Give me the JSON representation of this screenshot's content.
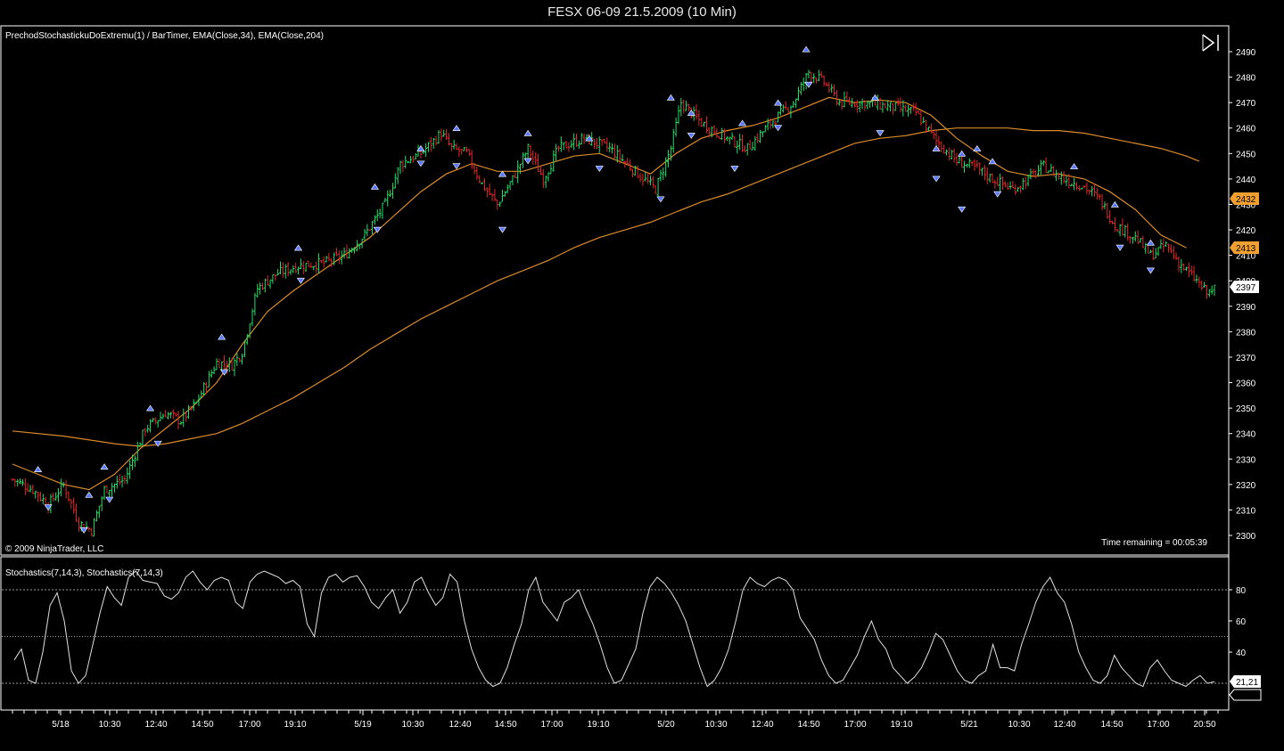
{
  "window": {
    "title": "FESX 06-09  21.5.2009 (10 Min)"
  },
  "price_panel": {
    "indicator_label": "PrechodStochastickuDoExtremu(1) / BarTimer, EMA(Close,34), EMA(Close,204)",
    "copyright": "© 2009 NinjaTrader, LLC",
    "time_remaining": "Time remaining = 00:05:39",
    "badges": {
      "ema34": "2413",
      "ema204": "2432",
      "last": "2397"
    },
    "colors": {
      "up": "#22dd66",
      "down": "#e02828",
      "ema34": "#d98a2a",
      "ema204": "#d98a2a",
      "marker": "#5a78ff",
      "badge": "#f0a030"
    }
  },
  "stoch_panel": {
    "label": "Stochastics(7,14,3), Stochastics(7,14,3)",
    "last_value": "21,21",
    "color": "#e0e0e0"
  },
  "x_axis": {
    "ticks": [
      "5/18",
      "10:30",
      "12:40",
      "14:50",
      "17:00",
      "19:10",
      "5/19",
      "10:30",
      "12:40",
      "14:50",
      "17:00",
      "19:10",
      "5/20",
      "10:30",
      "12:40",
      "14:50",
      "17:00",
      "19:10",
      "5/21",
      "10:30",
      "12:40",
      "14:50",
      "17:00",
      "20:50"
    ]
  },
  "chart_data": [
    {
      "type": "candlestick",
      "title": "FESX 06-09  21.5.2009 (10 Min)",
      "ylim": [
        2295,
        2495
      ],
      "yticks": [
        2300,
        2310,
        2320,
        2330,
        2340,
        2350,
        2360,
        2370,
        2380,
        2390,
        2400,
        2410,
        2420,
        2430,
        2440,
        2450,
        2460,
        2470,
        2480,
        2490
      ],
      "close_path": [
        [
          0,
          2322
        ],
        [
          8,
          2318
        ],
        [
          14,
          2312
        ],
        [
          20,
          2320
        ],
        [
          26,
          2305
        ],
        [
          31,
          2302
        ],
        [
          36,
          2318
        ],
        [
          44,
          2322
        ],
        [
          52,
          2342
        ],
        [
          60,
          2348
        ],
        [
          66,
          2345
        ],
        [
          72,
          2352
        ],
        [
          80,
          2368
        ],
        [
          86,
          2367
        ],
        [
          90,
          2372
        ],
        [
          96,
          2397
        ],
        [
          104,
          2403
        ],
        [
          112,
          2406
        ],
        [
          122,
          2407
        ],
        [
          130,
          2410
        ],
        [
          138,
          2418
        ],
        [
          146,
          2430
        ],
        [
          152,
          2446
        ],
        [
          160,
          2450
        ],
        [
          168,
          2458
        ],
        [
          172,
          2452
        ],
        [
          178,
          2450
        ],
        [
          184,
          2438
        ],
        [
          190,
          2430
        ],
        [
          196,
          2440
        ],
        [
          202,
          2452
        ],
        [
          208,
          2440
        ],
        [
          214,
          2452
        ],
        [
          224,
          2456
        ],
        [
          234,
          2452
        ],
        [
          244,
          2443
        ],
        [
          252,
          2436
        ],
        [
          258,
          2452
        ],
        [
          262,
          2470
        ],
        [
          270,
          2462
        ],
        [
          280,
          2456
        ],
        [
          288,
          2452
        ],
        [
          298,
          2463
        ],
        [
          306,
          2470
        ],
        [
          312,
          2482
        ],
        [
          318,
          2478
        ],
        [
          324,
          2470
        ],
        [
          334,
          2470
        ],
        [
          346,
          2468
        ],
        [
          354,
          2466
        ],
        [
          362,
          2455
        ],
        [
          370,
          2447
        ],
        [
          378,
          2444
        ],
        [
          384,
          2440
        ],
        [
          392,
          2436
        ],
        [
          398,
          2440
        ],
        [
          404,
          2445
        ],
        [
          412,
          2440
        ],
        [
          420,
          2437
        ],
        [
          426,
          2432
        ],
        [
          432,
          2422
        ],
        [
          440,
          2417
        ],
        [
          446,
          2410
        ],
        [
          452,
          2414
        ],
        [
          458,
          2406
        ],
        [
          464,
          2400
        ],
        [
          468,
          2395
        ],
        [
          471,
          2397
        ]
      ],
      "ema34": [
        [
          0,
          2328
        ],
        [
          20,
          2320
        ],
        [
          30,
          2318
        ],
        [
          40,
          2324
        ],
        [
          50,
          2334
        ],
        [
          60,
          2342
        ],
        [
          70,
          2350
        ],
        [
          80,
          2360
        ],
        [
          90,
          2375
        ],
        [
          100,
          2388
        ],
        [
          110,
          2396
        ],
        [
          120,
          2403
        ],
        [
          130,
          2410
        ],
        [
          140,
          2417
        ],
        [
          150,
          2426
        ],
        [
          160,
          2435
        ],
        [
          170,
          2442
        ],
        [
          180,
          2446
        ],
        [
          190,
          2443
        ],
        [
          200,
          2443
        ],
        [
          210,
          2446
        ],
        [
          220,
          2449
        ],
        [
          230,
          2450
        ],
        [
          240,
          2446
        ],
        [
          250,
          2442
        ],
        [
          260,
          2450
        ],
        [
          270,
          2456
        ],
        [
          280,
          2459
        ],
        [
          290,
          2461
        ],
        [
          300,
          2464
        ],
        [
          310,
          2468
        ],
        [
          320,
          2472
        ],
        [
          330,
          2470
        ],
        [
          340,
          2471
        ],
        [
          350,
          2470
        ],
        [
          360,
          2465
        ],
        [
          370,
          2456
        ],
        [
          380,
          2449
        ],
        [
          390,
          2443
        ],
        [
          400,
          2441
        ],
        [
          410,
          2442
        ],
        [
          420,
          2440
        ],
        [
          430,
          2435
        ],
        [
          440,
          2428
        ],
        [
          450,
          2418
        ],
        [
          460,
          2413
        ]
      ],
      "ema204": [
        [
          0,
          2341
        ],
        [
          20,
          2339
        ],
        [
          40,
          2336
        ],
        [
          50,
          2335
        ],
        [
          60,
          2336
        ],
        [
          70,
          2338
        ],
        [
          80,
          2340
        ],
        [
          90,
          2344
        ],
        [
          100,
          2349
        ],
        [
          110,
          2354
        ],
        [
          120,
          2360
        ],
        [
          130,
          2366
        ],
        [
          140,
          2373
        ],
        [
          150,
          2379
        ],
        [
          160,
          2385
        ],
        [
          170,
          2390
        ],
        [
          180,
          2395
        ],
        [
          190,
          2400
        ],
        [
          200,
          2404
        ],
        [
          210,
          2408
        ],
        [
          220,
          2413
        ],
        [
          230,
          2417
        ],
        [
          240,
          2420
        ],
        [
          250,
          2423
        ],
        [
          260,
          2427
        ],
        [
          270,
          2431
        ],
        [
          280,
          2434
        ],
        [
          290,
          2438
        ],
        [
          300,
          2442
        ],
        [
          310,
          2446
        ],
        [
          320,
          2450
        ],
        [
          330,
          2454
        ],
        [
          340,
          2456
        ],
        [
          350,
          2457
        ],
        [
          360,
          2459
        ],
        [
          370,
          2460
        ],
        [
          380,
          2460
        ],
        [
          390,
          2460
        ],
        [
          400,
          2459
        ],
        [
          410,
          2459
        ],
        [
          420,
          2458
        ],
        [
          430,
          2456
        ],
        [
          440,
          2454
        ],
        [
          450,
          2452
        ],
        [
          460,
          2449
        ],
        [
          465,
          2447
        ]
      ],
      "markers_up": [
        [
          10,
          2326
        ],
        [
          30,
          2316
        ],
        [
          36,
          2327
        ],
        [
          54,
          2350
        ],
        [
          82,
          2378
        ],
        [
          112,
          2413
        ],
        [
          142,
          2437
        ],
        [
          160,
          2452
        ],
        [
          174,
          2460
        ],
        [
          192,
          2442
        ],
        [
          202,
          2458
        ],
        [
          226,
          2456
        ],
        [
          258,
          2472
        ],
        [
          266,
          2466
        ],
        [
          286,
          2462
        ],
        [
          300,
          2470
        ],
        [
          311,
          2491
        ],
        [
          338,
          2472
        ],
        [
          362,
          2452
        ],
        [
          372,
          2450
        ],
        [
          378,
          2452
        ],
        [
          384,
          2447
        ],
        [
          416,
          2445
        ],
        [
          432,
          2430
        ],
        [
          446,
          2415
        ]
      ],
      "markers_down": [
        [
          14,
          2311
        ],
        [
          28,
          2302
        ],
        [
          38,
          2314
        ],
        [
          57,
          2336
        ],
        [
          83,
          2364
        ],
        [
          113,
          2400
        ],
        [
          143,
          2420
        ],
        [
          160,
          2446
        ],
        [
          174,
          2445
        ],
        [
          192,
          2420
        ],
        [
          202,
          2447
        ],
        [
          230,
          2444
        ],
        [
          254,
          2432
        ],
        [
          266,
          2457
        ],
        [
          283,
          2444
        ],
        [
          300,
          2460
        ],
        [
          312,
          2477
        ],
        [
          340,
          2458
        ],
        [
          362,
          2440
        ],
        [
          372,
          2428
        ],
        [
          386,
          2434
        ],
        [
          434,
          2413
        ],
        [
          446,
          2404
        ]
      ]
    },
    {
      "type": "line",
      "title": "Stochastics(7,14,3), Stochastics(7,14,3)",
      "ylim": [
        5,
        95
      ],
      "yticks": [
        40,
        60,
        80
      ],
      "reference_lines": [
        20,
        50,
        80
      ],
      "values": [
        35,
        42,
        22,
        20,
        40,
        70,
        78,
        60,
        28,
        20,
        25,
        45,
        65,
        82,
        75,
        70,
        88,
        92,
        86,
        85,
        84,
        76,
        74,
        78,
        88,
        92,
        85,
        80,
        86,
        88,
        86,
        72,
        68,
        85,
        90,
        92,
        90,
        88,
        84,
        86,
        82,
        58,
        50,
        78,
        88,
        90,
        85,
        88,
        89,
        82,
        72,
        68,
        75,
        80,
        65,
        72,
        85,
        88,
        78,
        70,
        75,
        90,
        85,
        60,
        42,
        30,
        22,
        18,
        20,
        30,
        45,
        58,
        80,
        88,
        72,
        66,
        60,
        72,
        75,
        80,
        68,
        58,
        45,
        30,
        20,
        22,
        32,
        42,
        65,
        82,
        88,
        84,
        78,
        70,
        60,
        45,
        30,
        18,
        22,
        30,
        42,
        60,
        80,
        88,
        84,
        82,
        86,
        88,
        86,
        80,
        62,
        55,
        48,
        35,
        25,
        20,
        22,
        30,
        38,
        50,
        60,
        48,
        42,
        30,
        25,
        20,
        24,
        30,
        40,
        52,
        48,
        38,
        28,
        22,
        20,
        25,
        28,
        45,
        30,
        30,
        28,
        45,
        58,
        72,
        82,
        88,
        78,
        72,
        58,
        40,
        30,
        22,
        20,
        25,
        38,
        30,
        25,
        20,
        18,
        30,
        35,
        28,
        22,
        20,
        18,
        22,
        25,
        20,
        21
      ]
    }
  ]
}
